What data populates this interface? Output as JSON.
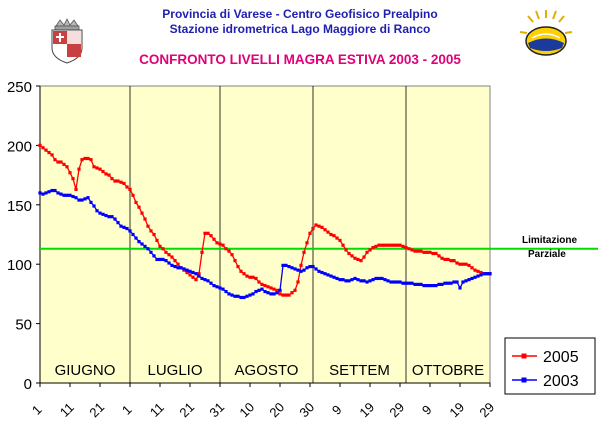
{
  "header": {
    "line1": "Provincia di Varese - Centro Geofisico Prealpino",
    "line2": "Stazione idrometrica Lago Maggiore di Ranco",
    "title": "CONFRONTO LIVELLI MAGRA ESTIVA 2003 - 2005"
  },
  "chart_data": {
    "type": "line",
    "title": "CONFRONTO LIVELLI MAGRA ESTIVA 2003 - 2005",
    "xlabel": "",
    "ylabel": "",
    "ylim": [
      0,
      250
    ],
    "yticks": [
      0,
      50,
      100,
      150,
      200,
      250
    ],
    "xlim": [
      1,
      151
    ],
    "grid": "vertical month separators",
    "legend": "bottom-right",
    "background": "#ffffcc",
    "months": [
      "GIUGNO",
      "LUGLIO",
      "AGOSTO",
      "SETTEM",
      "OTTOBRE"
    ],
    "x_tick_labels": [
      "1",
      "11",
      "21",
      "1",
      "11",
      "21",
      "31",
      "10",
      "20",
      "30",
      "9",
      "19",
      "29",
      "9",
      "19",
      "29"
    ],
    "reference_line": {
      "label": "Limitazione Parziale",
      "value": 113,
      "color": "#00dd00"
    },
    "series": [
      {
        "name": "2005",
        "color": "#ff0000",
        "marker": "square",
        "values": [
          200,
          198,
          196,
          194,
          192,
          188,
          186,
          186,
          184,
          182,
          177,
          172,
          163,
          180,
          188,
          189,
          189,
          188,
          182,
          181,
          180,
          178,
          176,
          175,
          172,
          170,
          170,
          169,
          168,
          165,
          163,
          158,
          152,
          148,
          143,
          138,
          132,
          128,
          125,
          120,
          115,
          113,
          110,
          108,
          106,
          103,
          100,
          97,
          95,
          93,
          91,
          89,
          87,
          92,
          110,
          126,
          126,
          124,
          121,
          118,
          117,
          116,
          113,
          111,
          108,
          103,
          98,
          94,
          92,
          90,
          89,
          89,
          88,
          85,
          83,
          82,
          81,
          80,
          79,
          78,
          75,
          74,
          74,
          74,
          76,
          78,
          85,
          99,
          110,
          118,
          126,
          130,
          133,
          132,
          131,
          129,
          127,
          125,
          124,
          122,
          120,
          116,
          112,
          109,
          107,
          105,
          104,
          103,
          106,
          110,
          112,
          114,
          115,
          116,
          116,
          116,
          116,
          116,
          116,
          116,
          116,
          115,
          114,
          113,
          112,
          111,
          111,
          111,
          110,
          110,
          110,
          109,
          109,
          107,
          105,
          104,
          104,
          103,
          103,
          101,
          100,
          100,
          100,
          99,
          97,
          95,
          94,
          93,
          92,
          92,
          92
        ]
      },
      {
        "name": "2003",
        "color": "#0000ff",
        "marker": "square",
        "values": [
          160,
          159,
          160,
          161,
          162,
          162,
          160,
          159,
          158,
          158,
          158,
          157,
          156,
          154,
          154,
          155,
          156,
          152,
          149,
          145,
          143,
          142,
          141,
          140,
          140,
          138,
          135,
          132,
          131,
          130,
          128,
          125,
          122,
          119,
          117,
          115,
          113,
          110,
          107,
          104,
          104,
          104,
          103,
          101,
          99,
          98,
          97,
          97,
          96,
          95,
          94,
          93,
          92,
          90,
          88,
          87,
          86,
          84,
          82,
          81,
          80,
          79,
          77,
          75,
          74,
          73,
          73,
          72,
          72,
          73,
          74,
          75,
          77,
          78,
          79,
          77,
          76,
          75,
          75,
          76,
          78,
          99,
          99,
          98,
          97,
          96,
          95,
          94,
          95,
          97,
          98,
          98,
          96,
          94,
          93,
          92,
          91,
          90,
          89,
          88,
          87,
          87,
          86,
          86,
          87,
          88,
          87,
          86,
          86,
          85,
          86,
          87,
          88,
          88,
          88,
          87,
          86,
          85,
          85,
          85,
          85,
          84,
          84,
          84,
          84,
          83,
          83,
          83,
          82,
          82,
          82,
          82,
          82,
          83,
          83,
          84,
          84,
          84,
          85,
          85,
          80,
          85,
          86,
          87,
          88,
          89,
          90,
          91,
          92,
          92,
          92
        ]
      }
    ]
  },
  "logos": {
    "left": "coat-of-arms",
    "right": "centro-geofisico-sun-logo"
  }
}
